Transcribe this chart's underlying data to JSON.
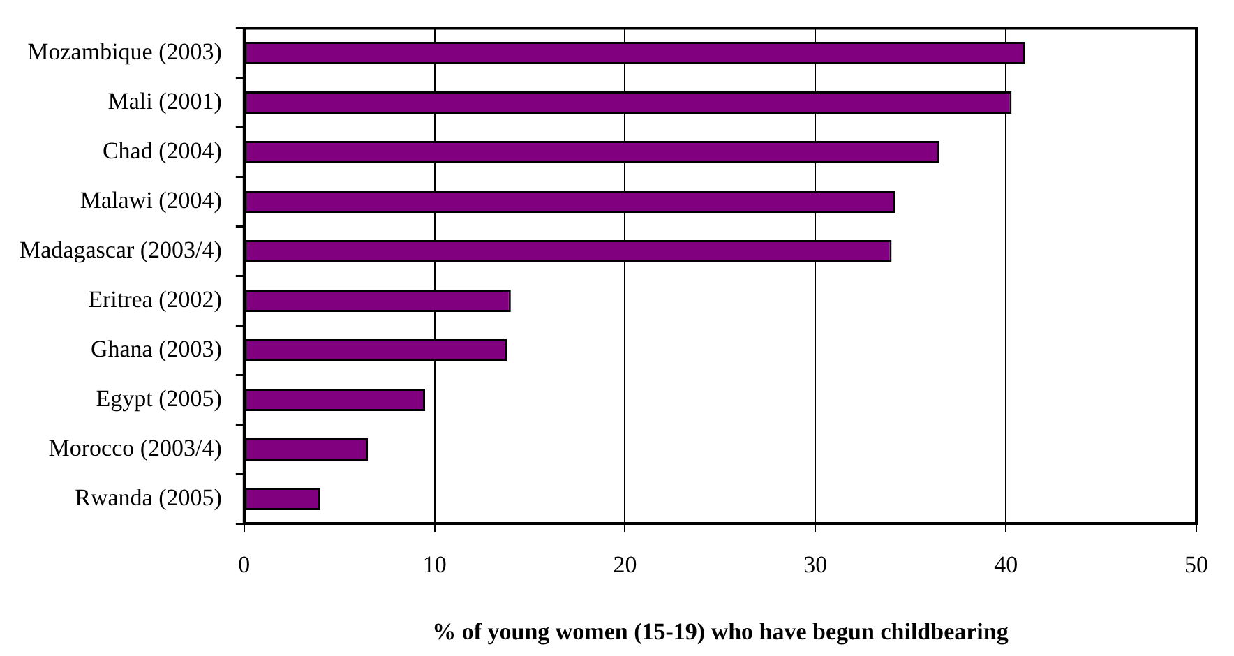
{
  "chart_data": {
    "type": "bar",
    "orientation": "horizontal",
    "xlabel": "% of young women (15-19) who have begun childbearing",
    "categories": [
      "Mozambique (2003)",
      "Mali (2001)",
      "Chad (2004)",
      "Malawi (2004)",
      "Madagascar (2003/4)",
      "Eritrea (2002)",
      "Ghana (2003)",
      "Egypt (2005)",
      "Morocco (2003/4)",
      "Rwanda (2005)"
    ],
    "values": [
      41.0,
      40.3,
      36.5,
      34.2,
      34.0,
      14.0,
      13.8,
      9.5,
      6.5,
      4.0
    ],
    "color": "#800080",
    "xlim": [
      0,
      50
    ],
    "xticks": [
      0,
      10,
      20,
      30,
      40,
      50
    ],
    "grid": "x",
    "legend": false
  }
}
